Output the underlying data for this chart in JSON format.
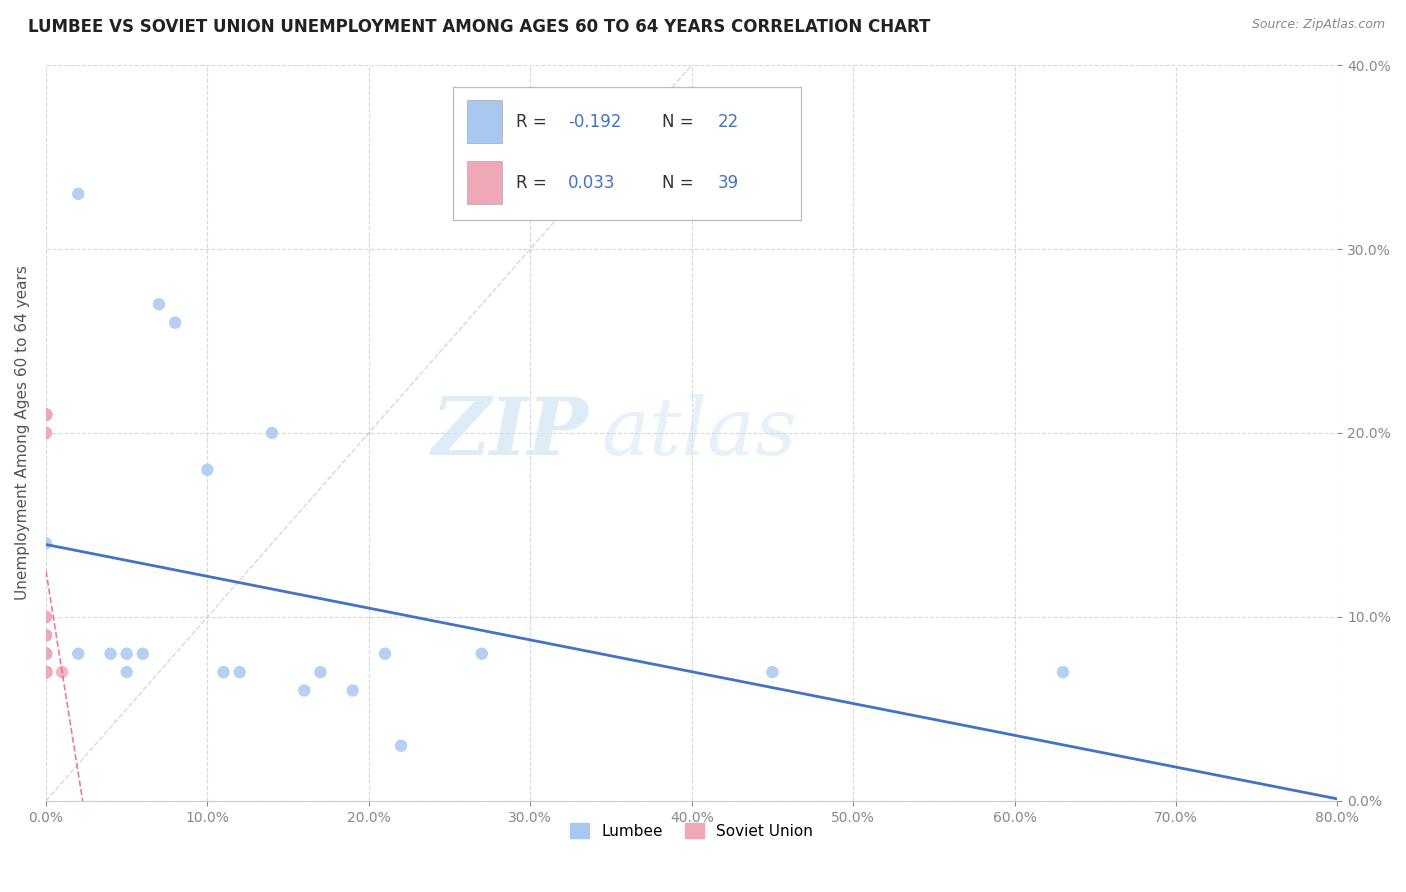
{
  "title": "LUMBEE VS SOVIET UNION UNEMPLOYMENT AMONG AGES 60 TO 64 YEARS CORRELATION CHART",
  "source": "Source: ZipAtlas.com",
  "ylabel": "Unemployment Among Ages 60 to 64 years",
  "xlabel": "",
  "xlim": [
    0.0,
    0.8
  ],
  "ylim": [
    0.0,
    0.4
  ],
  "xticks": [
    0.0,
    0.1,
    0.2,
    0.3,
    0.4,
    0.5,
    0.6,
    0.7,
    0.8
  ],
  "yticks": [
    0.0,
    0.1,
    0.2,
    0.3,
    0.4
  ],
  "lumbee_x": [
    0.0,
    0.0,
    0.02,
    0.04,
    0.05,
    0.05,
    0.06,
    0.07,
    0.08,
    0.1,
    0.11,
    0.12,
    0.14,
    0.16,
    0.17,
    0.19,
    0.21,
    0.22,
    0.27,
    0.45,
    0.63,
    0.02
  ],
  "lumbee_y": [
    0.14,
    0.09,
    0.08,
    0.08,
    0.07,
    0.08,
    0.08,
    0.27,
    0.26,
    0.18,
    0.07,
    0.07,
    0.2,
    0.06,
    0.07,
    0.06,
    0.08,
    0.03,
    0.08,
    0.07,
    0.07,
    0.33
  ],
  "soviet_x": [
    0.0,
    0.0,
    0.0,
    0.0,
    0.0,
    0.0,
    0.0,
    0.0,
    0.0,
    0.0,
    0.0,
    0.0,
    0.0,
    0.0,
    0.0,
    0.0,
    0.0,
    0.0,
    0.0,
    0.0,
    0.0,
    0.0,
    0.0,
    0.0,
    0.0,
    0.0,
    0.0,
    0.0,
    0.0,
    0.0,
    0.0,
    0.0,
    0.0,
    0.0,
    0.0,
    0.0,
    0.0,
    0.0,
    0.01
  ],
  "soviet_y": [
    0.07,
    0.07,
    0.07,
    0.07,
    0.07,
    0.07,
    0.07,
    0.07,
    0.07,
    0.07,
    0.07,
    0.07,
    0.07,
    0.07,
    0.07,
    0.08,
    0.08,
    0.08,
    0.08,
    0.08,
    0.09,
    0.09,
    0.1,
    0.1,
    0.2,
    0.2,
    0.21,
    0.21,
    0.21,
    0.21,
    0.21,
    0.21,
    0.21,
    0.21,
    0.21,
    0.21,
    0.21,
    0.21,
    0.07
  ],
  "lumbee_color": "#a8c8f0",
  "soviet_color": "#f0a8b8",
  "lumbee_R": -0.192,
  "lumbee_N": 22,
  "soviet_R": 0.033,
  "soviet_N": 39,
  "lumbee_line_color": "#4472c4",
  "soviet_line_color": "#e06080",
  "diagonal_line_color": "#c0c8d8",
  "watermark_zip": "ZIP",
  "watermark_atlas": "atlas",
  "background_color": "#ffffff",
  "grid_color": "#d8d8d8",
  "tick_color": "#888888"
}
